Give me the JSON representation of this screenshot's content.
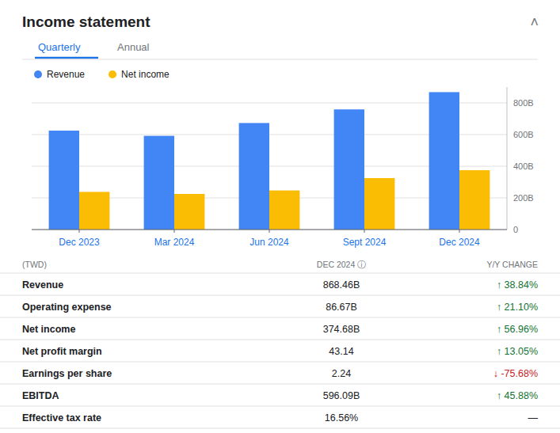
{
  "chart_data": {
    "type": "bar",
    "title": "Income statement",
    "annotations": [
      "˄",
      "Quarterly",
      "Annual"
    ],
    "categories": [
      "Dec 2023",
      "Mar 2024",
      "Jun 2024",
      "Sept 2024",
      "Dec 2024"
    ],
    "series": [
      {
        "name": "Revenue",
        "color": "#4285F4",
        "values": [
          625,
          592,
          673,
          759,
          868
        ]
      },
      {
        "name": "Net income",
        "color": "#FBBC04",
        "values": [
          238,
          225,
          247,
          325,
          375
        ]
      }
    ],
    "ylim": [
      0,
      900
    ],
    "yticks": [
      0,
      {
        "value": 200,
        "label": "200B"
      },
      {
        "value": 400,
        "label": "400B"
      },
      {
        "value": 600,
        "label": "600B"
      },
      {
        "value": 800,
        "label": "800B"
      }
    ],
    "grid": true,
    "legend": "top",
    "table": {
      "header": [
        "(TWD)",
        "DEC 2024 ⓘ",
        "Y/Y CHANGE"
      ],
      "rows": [
        [
          "Revenue",
          "868.46B",
          "↑ 38.84%"
        ],
        [
          "Operating expense",
          "86.67B",
          "↑ 21.10%"
        ],
        [
          "Net income",
          "374.68B",
          "↑ 56.96%"
        ],
        [
          "Net profit margin",
          "43.14",
          "↑ 13.05%"
        ],
        [
          "Earnings per share",
          "2.24",
          "↓ -75.68%"
        ],
        [
          "EBITDA",
          "596.09B",
          "↑ 45.88%"
        ],
        [
          "Effective tax rate",
          "16.56%",
          "—"
        ]
      ],
      "colors": [
        "#137333",
        "#137333",
        "#137333",
        "#137333",
        "#c5221f",
        "#137333",
        "#202124"
      ]
    }
  }
}
